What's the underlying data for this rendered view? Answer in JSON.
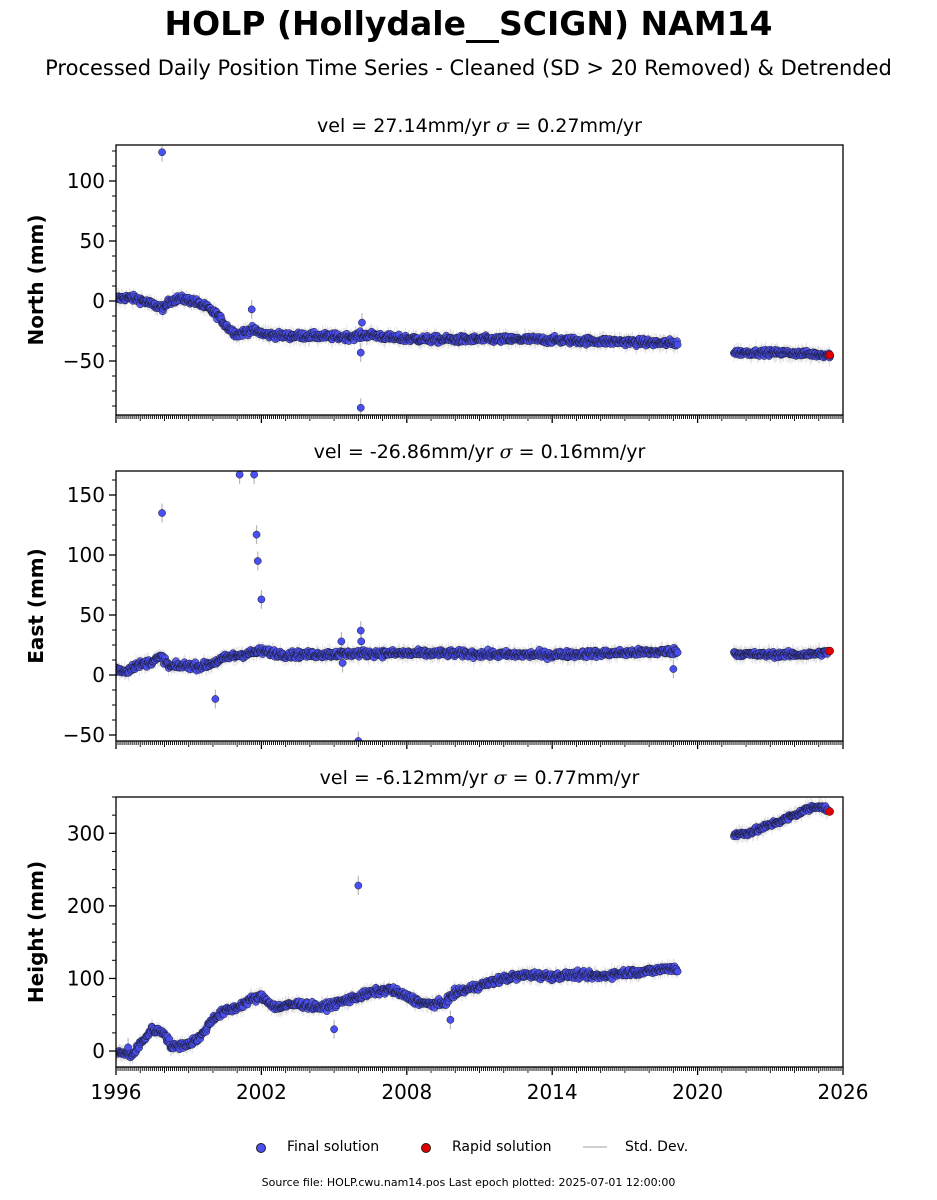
{
  "title": "HOLP (Hollydale__SCIGN) NAM14",
  "subtitle": "Processed Daily Position Time Series - Cleaned (SD > 20 Removed) & Detrended",
  "legend": {
    "final_label": "Final solution",
    "rapid_label": "Rapid solution",
    "std_label": "Std. Dev."
  },
  "footer": "Source file: HOLP.cwu.nam14.pos  Last epoch plotted: 2025-07-01 12:00:00",
  "colors": {
    "final": "#4a4ff0",
    "rapid": "#e00000",
    "std": "#c8c8c8",
    "edge": "#1a1a2e"
  },
  "chart_data": [
    {
      "type": "scatter",
      "panel_title": "vel = 27.14mm/yr   σ = 0.27mm/yr",
      "vel_text": "vel = 27.14mm/yr",
      "sigma_text": "= 0.27mm/yr",
      "ylabel": "North (mm)",
      "xlim": [
        1996,
        2026
      ],
      "ylim": [
        -95,
        130
      ],
      "yticks": [
        -50,
        0,
        50,
        100
      ],
      "ytick_labels": [
        "−50",
        "0",
        "50",
        "100"
      ],
      "xticks": [
        1996,
        2002,
        2008,
        2014,
        2020,
        2026
      ],
      "xtick_labels": [
        "1996",
        "2002",
        "2008",
        "2014",
        "2020",
        "2026"
      ],
      "series": [
        {
          "role": "final",
          "trend": [
            [
              1996.0,
              2
            ],
            [
              1996.5,
              3
            ],
            [
              1997.0,
              1
            ],
            [
              1997.5,
              -3
            ],
            [
              1998.0,
              -6
            ],
            [
              1998.2,
              0
            ],
            [
              1998.6,
              2
            ],
            [
              1999.2,
              0
            ],
            [
              1999.8,
              -6
            ],
            [
              2000.2,
              -12
            ],
            [
              2000.6,
              -22
            ],
            [
              2001.0,
              -28
            ],
            [
              2001.6,
              -24
            ],
            [
              2002.2,
              -28
            ],
            [
              2003.0,
              -29
            ],
            [
              2004.0,
              -29
            ],
            [
              2005.5,
              -30
            ],
            [
              2006.5,
              -28
            ],
            [
              2007.5,
              -31
            ],
            [
              2009.0,
              -32
            ],
            [
              2011.0,
              -32
            ],
            [
              2013.0,
              -32
            ],
            [
              2015.0,
              -33
            ],
            [
              2017.0,
              -34
            ],
            [
              2018.5,
              -35
            ],
            [
              2019.2,
              -35
            ]
          ],
          "trend2": [
            [
              2021.5,
              -43
            ],
            [
              2022.5,
              -43
            ],
            [
              2023.5,
              -43
            ],
            [
              2024.5,
              -44
            ],
            [
              2025.5,
              -45
            ]
          ],
          "outliers": [
            [
              1997.9,
              124
            ],
            [
              2001.6,
              -7
            ],
            [
              2006.1,
              -43
            ],
            [
              2006.1,
              -89
            ],
            [
              2006.15,
              -18
            ]
          ]
        },
        {
          "role": "rapid",
          "points": [
            [
              2025.45,
              -45
            ]
          ]
        }
      ]
    },
    {
      "type": "scatter",
      "panel_title": "vel = -26.86mm/yr   σ = 0.16mm/yr",
      "vel_text": "vel = -26.86mm/yr",
      "sigma_text": "= 0.16mm/yr",
      "ylabel": "East (mm)",
      "xlim": [
        1996,
        2026
      ],
      "ylim": [
        -55,
        170
      ],
      "yticks": [
        -50,
        0,
        50,
        100,
        150
      ],
      "ytick_labels": [
        "−50",
        "0",
        "50",
        "100",
        "150"
      ],
      "xticks": [
        1996,
        2002,
        2008,
        2014,
        2020,
        2026
      ],
      "xtick_labels": [
        "1996",
        "2002",
        "2008",
        "2014",
        "2020",
        "2026"
      ],
      "series": [
        {
          "role": "final",
          "trend": [
            [
              1996.0,
              5
            ],
            [
              1996.4,
              3
            ],
            [
              1996.8,
              8
            ],
            [
              1997.3,
              10
            ],
            [
              1997.9,
              15
            ],
            [
              1998.2,
              7
            ],
            [
              1998.9,
              8
            ],
            [
              1999.5,
              7
            ],
            [
              2000.0,
              10
            ],
            [
              2000.6,
              15
            ],
            [
              2001.2,
              17
            ],
            [
              2002.0,
              20
            ],
            [
              2003.0,
              17
            ],
            [
              2004.0,
              17
            ],
            [
              2006.0,
              18
            ],
            [
              2008.0,
              18
            ],
            [
              2010.0,
              18
            ],
            [
              2012.0,
              17
            ],
            [
              2014.0,
              17
            ],
            [
              2016.0,
              18
            ],
            [
              2018.0,
              19
            ],
            [
              2019.2,
              20
            ]
          ],
          "trend2": [
            [
              2021.5,
              18
            ],
            [
              2022.5,
              17
            ],
            [
              2023.5,
              17
            ],
            [
              2024.5,
              17
            ],
            [
              2025.4,
              19
            ]
          ],
          "outliers": [
            [
              1997.9,
              135
            ],
            [
              2001.1,
              167
            ],
            [
              2001.7,
              167
            ],
            [
              2001.8,
              117
            ],
            [
              2001.85,
              95
            ],
            [
              2002.0,
              63
            ],
            [
              2000.1,
              -20
            ],
            [
              2005.3,
              28
            ],
            [
              2005.35,
              10
            ],
            [
              2006.1,
              37
            ],
            [
              2006.12,
              28
            ],
            [
              2006.0,
              -55
            ],
            [
              2019.0,
              5
            ]
          ]
        },
        {
          "role": "rapid",
          "points": [
            [
              2025.45,
              20
            ]
          ]
        }
      ]
    },
    {
      "type": "scatter",
      "panel_title": "vel = -6.12mm/yr   σ = 0.77mm/yr",
      "vel_text": "vel = -6.12mm/yr",
      "sigma_text": "= 0.77mm/yr",
      "ylabel": "Height (mm)",
      "xlim": [
        1996,
        2026
      ],
      "ylim": [
        -22,
        350
      ],
      "yticks": [
        0,
        100,
        200,
        300
      ],
      "ytick_labels": [
        "0",
        "100",
        "200",
        "300"
      ],
      "xticks": [
        1996,
        2002,
        2008,
        2014,
        2020,
        2026
      ],
      "xtick_labels": [
        "1996",
        "2002",
        "2008",
        "2014",
        "2020",
        "2026"
      ],
      "series": [
        {
          "role": "final",
          "trend": [
            [
              1996.0,
              -2
            ],
            [
              1996.7,
              -5
            ],
            [
              1997.0,
              10
            ],
            [
              1997.5,
              30
            ],
            [
              1998.0,
              25
            ],
            [
              1998.3,
              5
            ],
            [
              1999.0,
              10
            ],
            [
              1999.5,
              20
            ],
            [
              2000.0,
              45
            ],
            [
              2000.5,
              55
            ],
            [
              2001.0,
              60
            ],
            [
              2001.5,
              70
            ],
            [
              2002.0,
              75
            ],
            [
              2002.6,
              60
            ],
            [
              2003.5,
              65
            ],
            [
              2004.5,
              60
            ],
            [
              2005.5,
              70
            ],
            [
              2006.5,
              80
            ],
            [
              2007.3,
              85
            ],
            [
              2008.0,
              75
            ],
            [
              2008.7,
              65
            ],
            [
              2009.5,
              65
            ],
            [
              2010.0,
              80
            ],
            [
              2011.0,
              90
            ],
            [
              2012.0,
              100
            ],
            [
              2013.0,
              105
            ],
            [
              2014.0,
              103
            ],
            [
              2015.0,
              105
            ],
            [
              2016.0,
              103
            ],
            [
              2017.0,
              108
            ],
            [
              2018.0,
              110
            ],
            [
              2019.0,
              115
            ],
            [
              2019.2,
              110
            ]
          ],
          "trend2": [
            [
              2021.5,
              298
            ],
            [
              2022.0,
              300
            ],
            [
              2022.5,
              305
            ],
            [
              2023.0,
              312
            ],
            [
              2023.5,
              318
            ],
            [
              2024.0,
              325
            ],
            [
              2024.5,
              333
            ],
            [
              2025.0,
              338
            ],
            [
              2025.4,
              332
            ]
          ],
          "outliers": [
            [
              2006.0,
              228
            ],
            [
              2005.0,
              30
            ],
            [
              2009.8,
              43
            ],
            [
              1996.5,
              5
            ]
          ]
        },
        {
          "role": "rapid",
          "points": [
            [
              2025.45,
              330
            ]
          ]
        }
      ]
    }
  ]
}
